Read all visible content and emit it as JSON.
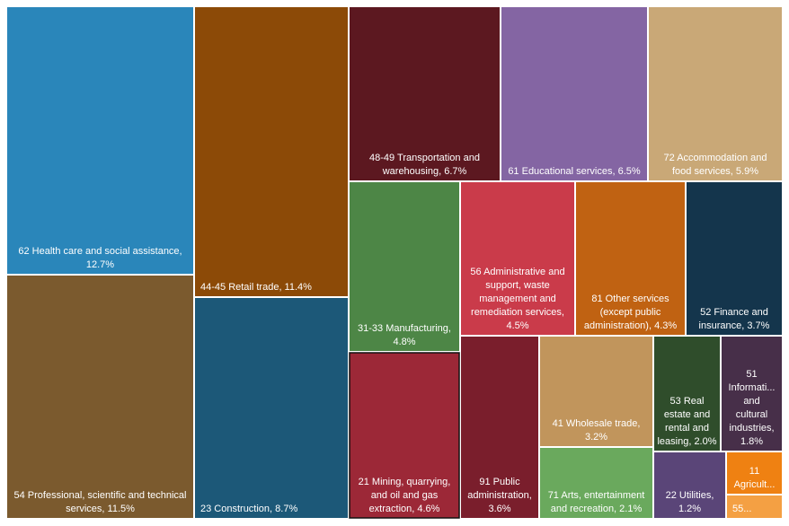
{
  "chart_data": {
    "type": "treemap",
    "title": "",
    "series": [
      {
        "name": "62 Health care and social assistance",
        "value": 12.7,
        "label": "62 Health care and social assistance, 12.7%",
        "color": "#2a86ba"
      },
      {
        "name": "54 Professional, scientific and technical services",
        "value": 11.5,
        "label": "54 Professional, scientific and technical services, 11.5%",
        "color": "#7b5a2e"
      },
      {
        "name": "44-45 Retail trade",
        "value": 11.4,
        "label": "44-45 Retail trade, 11.4%",
        "color": "#8c4a07"
      },
      {
        "name": "23 Construction",
        "value": 8.7,
        "label": "23 Construction, 8.7%",
        "color": "#1c5878"
      },
      {
        "name": "48-49 Transportation and warehousing",
        "value": 6.7,
        "label": "48-49 Transportation and warehousing, 6.7%",
        "color": "#5c1820"
      },
      {
        "name": "61 Educational services",
        "value": 6.5,
        "label": "61 Educational services, 6.5%",
        "color": "#8465a3"
      },
      {
        "name": "72 Accommodation and food services",
        "value": 5.9,
        "label": "72 Accommodation and food services, 5.9%",
        "color": "#c9a877"
      },
      {
        "name": "31-33 Manufacturing",
        "value": 4.8,
        "label": "31-33 Manufacturing, 4.8%",
        "color": "#4d8646"
      },
      {
        "name": "21 Mining, quarrying, and oil and gas extraction",
        "value": 4.6,
        "label": "21 Mining, quarrying, and oil and gas extraction, 4.6%",
        "color": "#9c2837"
      },
      {
        "name": "56 Administrative and support, waste management and remediation services",
        "value": 4.5,
        "label": "56 Administrative and support, waste management and remediation services, 4.5%",
        "color": "#ca3b4a"
      },
      {
        "name": "81 Other services (except public administration)",
        "value": 4.3,
        "label": "81 Other services (except public administration), 4.3%",
        "color": "#c06212"
      },
      {
        "name": "52 Finance and insurance",
        "value": 3.7,
        "label": "52 Finance and insurance, 3.7%",
        "color": "#14354c"
      },
      {
        "name": "91 Public administration",
        "value": 3.6,
        "label": "91 Public administration, 3.6%",
        "color": "#7a1e2c"
      },
      {
        "name": "41 Wholesale trade",
        "value": 3.2,
        "label": "41 Wholesale trade, 3.2%",
        "color": "#c1955c"
      },
      {
        "name": "71 Arts, entertainment and recreation",
        "value": 2.1,
        "label": "71 Arts, entertainment and recreation, 2.1%",
        "color": "#6aa95d"
      },
      {
        "name": "53 Real estate and rental and leasing",
        "value": 2.0,
        "label": "53 Real estate and rental and leasing, 2.0%",
        "color": "#2f4d2b"
      },
      {
        "name": "51 Information and cultural industries",
        "value": 1.8,
        "label": "51 Informati... and cultural industries, 1.8%",
        "color": "#472f49"
      },
      {
        "name": "22 Utilities",
        "value": 1.2,
        "label": "22 Utilities, 1.2%",
        "color": "#5a4578"
      },
      {
        "name": "11 Agriculture",
        "value": null,
        "label": "11 Agricult...",
        "color": "#ef8112"
      },
      {
        "name": "55",
        "value": null,
        "label": "55...",
        "color": "#f4a043"
      }
    ]
  }
}
